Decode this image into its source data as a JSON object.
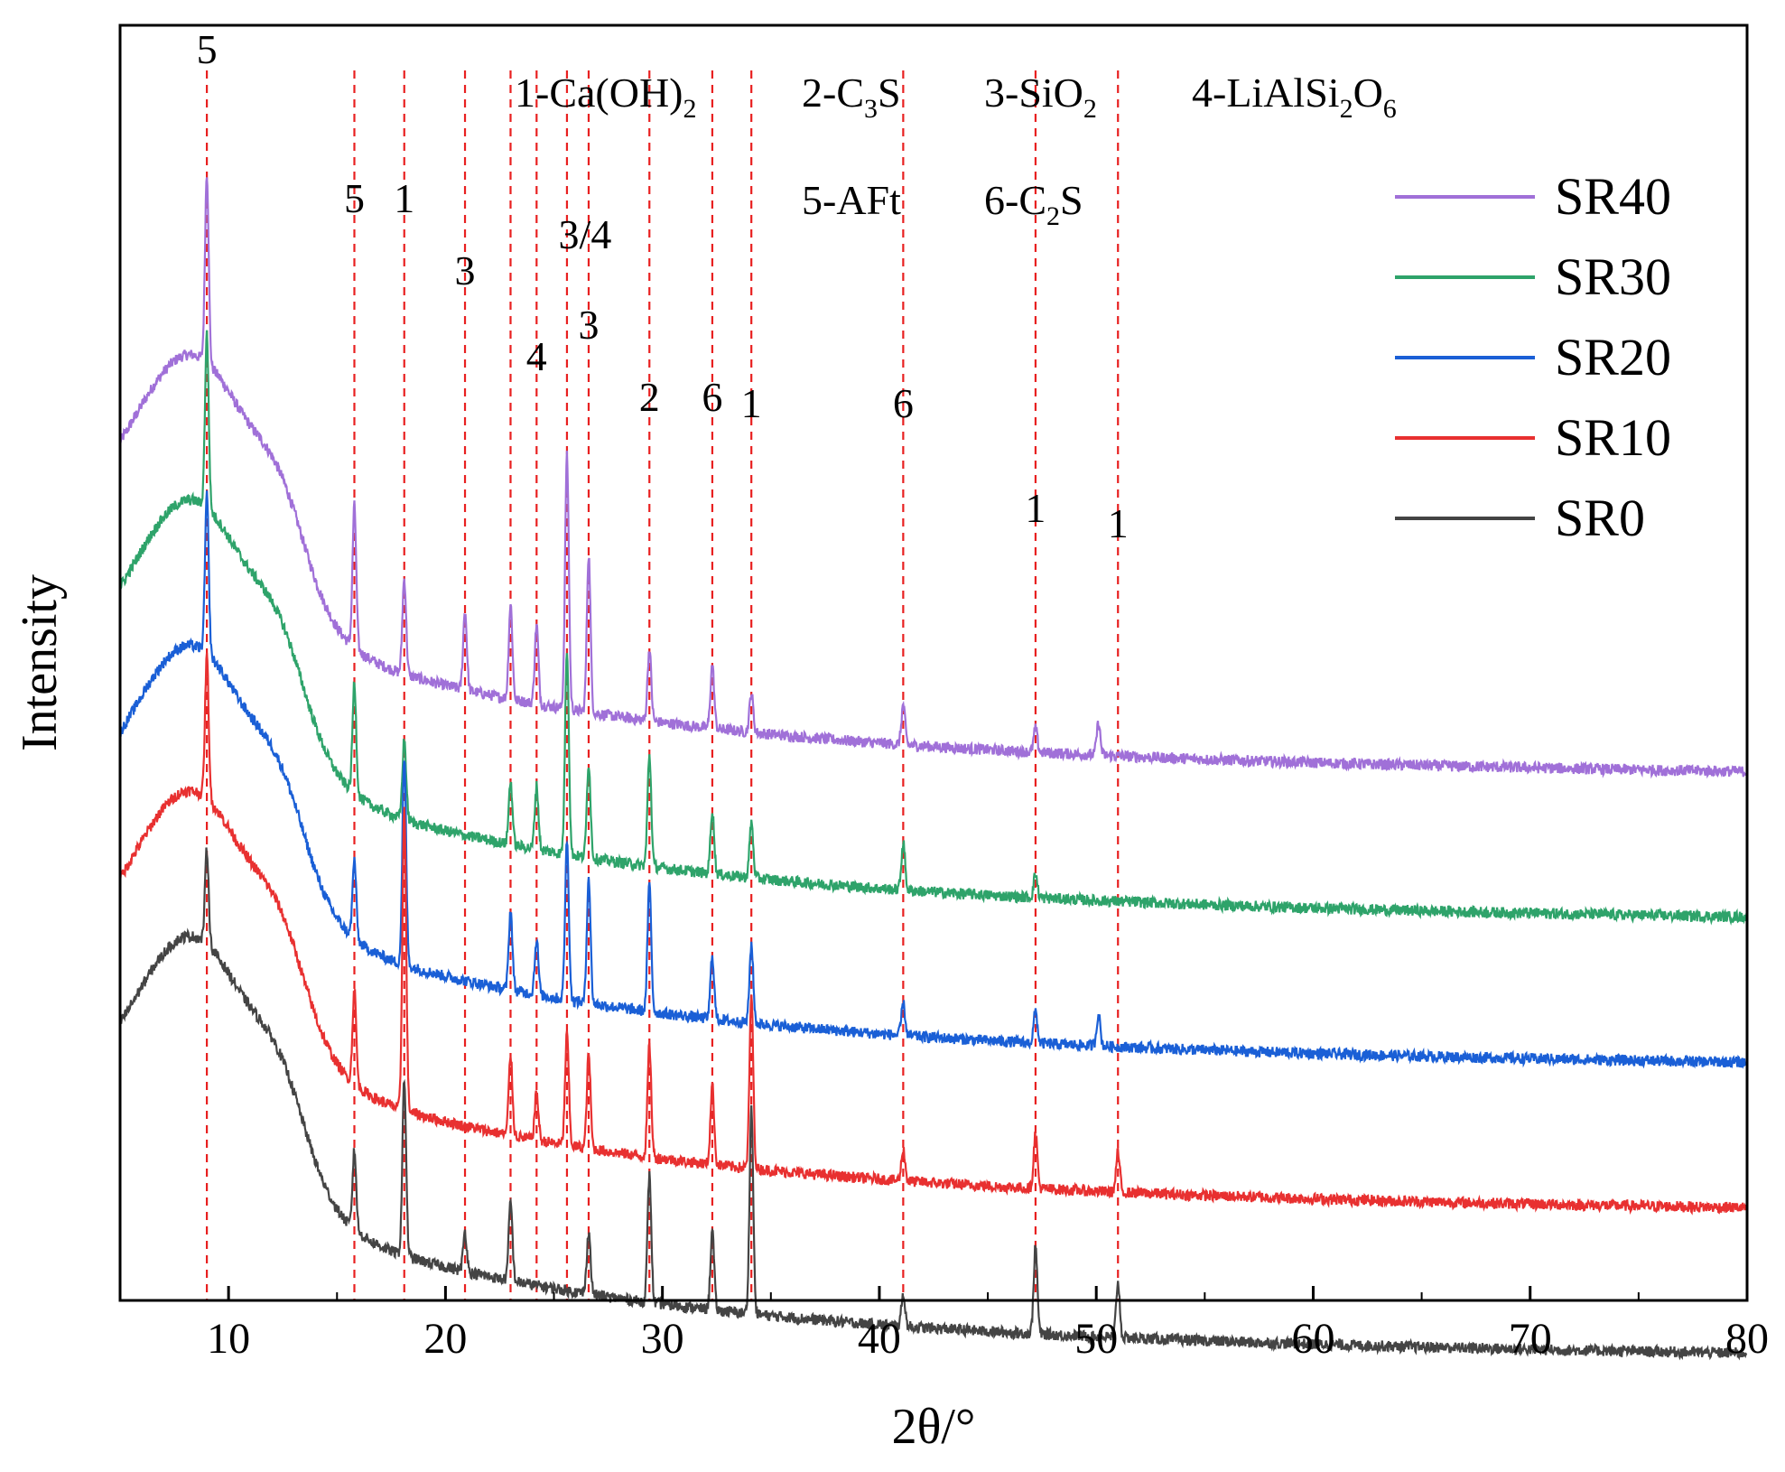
{
  "chart_data": {
    "type": "line",
    "xlabel": "2θ/°",
    "ylabel": "Intensity",
    "xlim": [
      5,
      80
    ],
    "xticks": [
      10,
      20,
      30,
      40,
      50,
      60,
      70,
      80
    ],
    "grid": false,
    "legend_position": "top-right",
    "phase_key": [
      {
        "label": "1-Ca(OH)",
        "sub": "2",
        "tail": ""
      },
      {
        "label": "2-C",
        "sub": "3",
        "tail": "S"
      },
      {
        "label": "3-SiO",
        "sub": "2",
        "tail": ""
      },
      {
        "label": "4-LiAlSi",
        "sub": "2",
        "tail": "O",
        "sub2": "6"
      },
      {
        "label": "5-AFt",
        "sub": "",
        "tail": ""
      },
      {
        "label": "6-C",
        "sub": "2",
        "tail": "S"
      }
    ],
    "reference_lines": [
      {
        "x": 9.0,
        "label": "5"
      },
      {
        "x": 15.8,
        "label": "5"
      },
      {
        "x": 18.1,
        "label": "1"
      },
      {
        "x": 20.9,
        "label": "3"
      },
      {
        "x": 23.0,
        "label": ""
      },
      {
        "x": 24.2,
        "label": "4"
      },
      {
        "x": 25.6,
        "label": "3/4"
      },
      {
        "x": 26.6,
        "label": "3"
      },
      {
        "x": 29.4,
        "label": "2"
      },
      {
        "x": 32.3,
        "label": "6"
      },
      {
        "x": 34.1,
        "label": "1"
      },
      {
        "x": 41.1,
        "label": "6"
      },
      {
        "x": 47.2,
        "label": "1"
      },
      {
        "x": 51.0,
        "label": "1"
      }
    ],
    "series": [
      {
        "name": "SR40",
        "color": "#a070d8",
        "offset": 4,
        "peaks": [
          [
            9,
            1.2
          ],
          [
            15.8,
            0.9
          ],
          [
            18.1,
            0.6
          ],
          [
            20.9,
            0.5
          ],
          [
            23,
            0.6
          ],
          [
            24.2,
            0.5
          ],
          [
            25.6,
            1.6
          ],
          [
            26.6,
            1.0
          ],
          [
            29.4,
            0.45
          ],
          [
            32.3,
            0.4
          ],
          [
            34.1,
            0.25
          ],
          [
            41.1,
            0.25
          ],
          [
            47.2,
            0.15
          ],
          [
            50.1,
            0.2
          ]
        ]
      },
      {
        "name": "SR30",
        "color": "#2ea36a",
        "offset": 3,
        "peaks": [
          [
            9,
            1.1
          ],
          [
            15.8,
            0.7
          ],
          [
            18.1,
            0.5
          ],
          [
            23,
            0.4
          ],
          [
            24.2,
            0.4
          ],
          [
            25.6,
            1.3
          ],
          [
            26.6,
            0.6
          ],
          [
            29.4,
            0.7
          ],
          [
            32.3,
            0.4
          ],
          [
            34.1,
            0.35
          ],
          [
            41.1,
            0.3
          ],
          [
            47.2,
            0.15
          ]
        ]
      },
      {
        "name": "SR20",
        "color": "#1a5fd6",
        "offset": 2,
        "peaks": [
          [
            9,
            1.0
          ],
          [
            15.8,
            0.5
          ],
          [
            18.1,
            1.3
          ],
          [
            23,
            0.5
          ],
          [
            24.2,
            0.35
          ],
          [
            25.6,
            1.0
          ],
          [
            26.6,
            0.8
          ],
          [
            29.4,
            0.8
          ],
          [
            32.3,
            0.4
          ],
          [
            34.1,
            0.5
          ],
          [
            41.1,
            0.2
          ],
          [
            47.2,
            0.2
          ],
          [
            50.1,
            0.2
          ]
        ]
      },
      {
        "name": "SR10",
        "color": "#e83030",
        "offset": 1,
        "peaks": [
          [
            9,
            0.9
          ],
          [
            15.8,
            0.6
          ],
          [
            18.1,
            1.9
          ],
          [
            23,
            0.5
          ],
          [
            24.2,
            0.3
          ],
          [
            25.6,
            0.7
          ],
          [
            26.6,
            0.6
          ],
          [
            29.4,
            0.7
          ],
          [
            32.3,
            0.5
          ],
          [
            34.1,
            1.1
          ],
          [
            41.1,
            0.2
          ],
          [
            47.2,
            0.35
          ],
          [
            51,
            0.25
          ]
        ]
      },
      {
        "name": "SR0",
        "color": "#444444",
        "offset": 0,
        "peaks": [
          [
            9,
            0.6
          ],
          [
            15.8,
            0.5
          ],
          [
            18.1,
            1.1
          ],
          [
            20.9,
            0.25
          ],
          [
            23,
            0.5
          ],
          [
            26.6,
            0.4
          ],
          [
            29.4,
            0.8
          ],
          [
            32.3,
            0.5
          ],
          [
            34.1,
            1.3
          ],
          [
            41.1,
            0.2
          ],
          [
            47.2,
            0.55
          ],
          [
            51,
            0.35
          ]
        ]
      }
    ]
  }
}
